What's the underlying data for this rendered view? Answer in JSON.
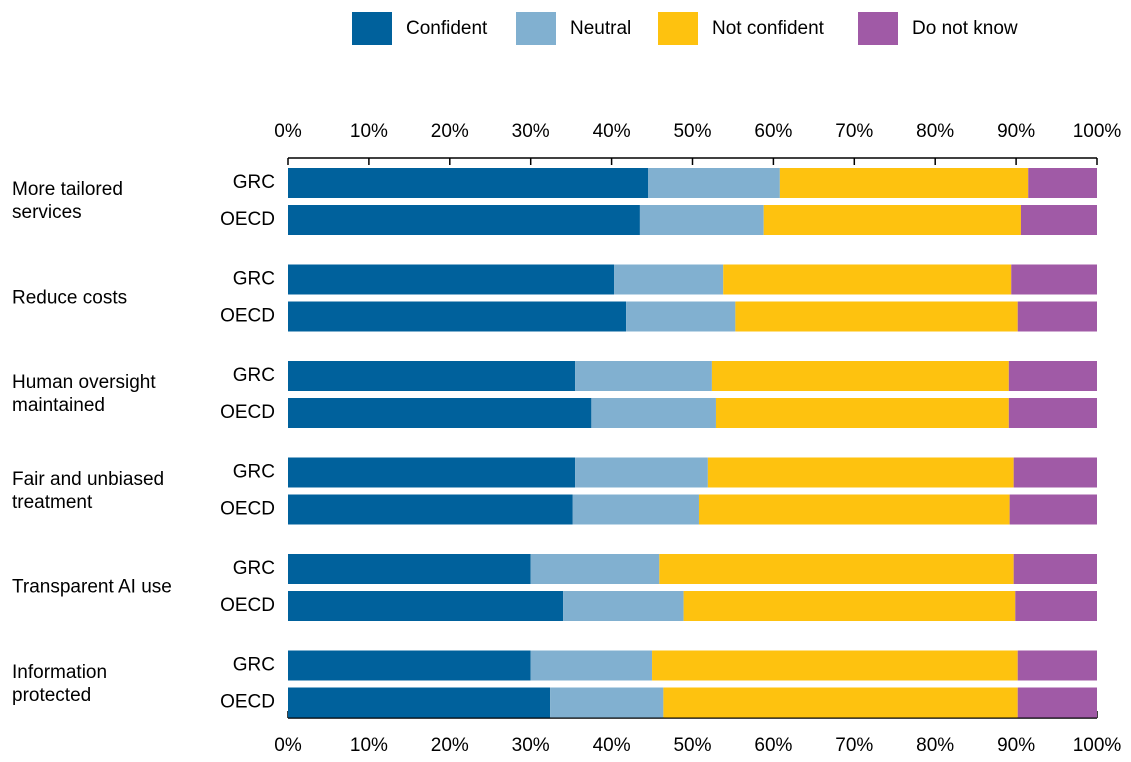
{
  "chart_data": {
    "type": "stacked-bar-horizontal",
    "groups": [
      "More tailored services",
      "Reduce costs",
      "Human oversight maintained",
      "Fair and unbiased treatment",
      "Transparent AI use",
      "Information protected"
    ],
    "categories": [
      "GRC",
      "OECD",
      "GRC",
      "OECD",
      "GRC",
      "OECD",
      "GRC",
      "OECD",
      "GRC",
      "OECD",
      "GRC",
      "OECD"
    ],
    "series": [
      {
        "name": "Confident",
        "color": "#00619c",
        "values": [
          44.5,
          43.5,
          40.3,
          41.8,
          35.5,
          37.5,
          35.5,
          35.2,
          30.0,
          34.0,
          30.0,
          32.4
        ]
      },
      {
        "name": "Neutral",
        "color": "#81b0d0",
        "values": [
          16.3,
          15.3,
          13.5,
          13.5,
          16.9,
          15.4,
          16.4,
          15.6,
          15.9,
          14.9,
          15.0,
          14.0
        ]
      },
      {
        "name": "Not confident",
        "color": "#fec20f",
        "values": [
          30.7,
          31.8,
          35.6,
          34.9,
          36.7,
          36.2,
          37.8,
          38.4,
          43.8,
          41.0,
          45.2,
          43.8
        ]
      },
      {
        "name": "Do not know",
        "color": "#a05aa6",
        "values": [
          8.5,
          9.4,
          10.6,
          9.8,
          10.9,
          10.9,
          10.3,
          10.8,
          10.3,
          10.1,
          9.8,
          9.8
        ]
      }
    ],
    "xlim": [
      0,
      100
    ],
    "xticks": [
      {
        "value": 0,
        "label": "0%"
      },
      {
        "value": 10,
        "label": "10%"
      },
      {
        "value": 20,
        "label": "20%"
      },
      {
        "value": 30,
        "label": "30%"
      },
      {
        "value": 40,
        "label": "40%"
      },
      {
        "value": 50,
        "label": "50%"
      },
      {
        "value": 60,
        "label": "60%"
      },
      {
        "value": 70,
        "label": "70%"
      },
      {
        "value": 80,
        "label": "80%"
      },
      {
        "value": 90,
        "label": "90%"
      },
      {
        "value": 100,
        "label": "100%"
      }
    ],
    "legend": "top"
  }
}
